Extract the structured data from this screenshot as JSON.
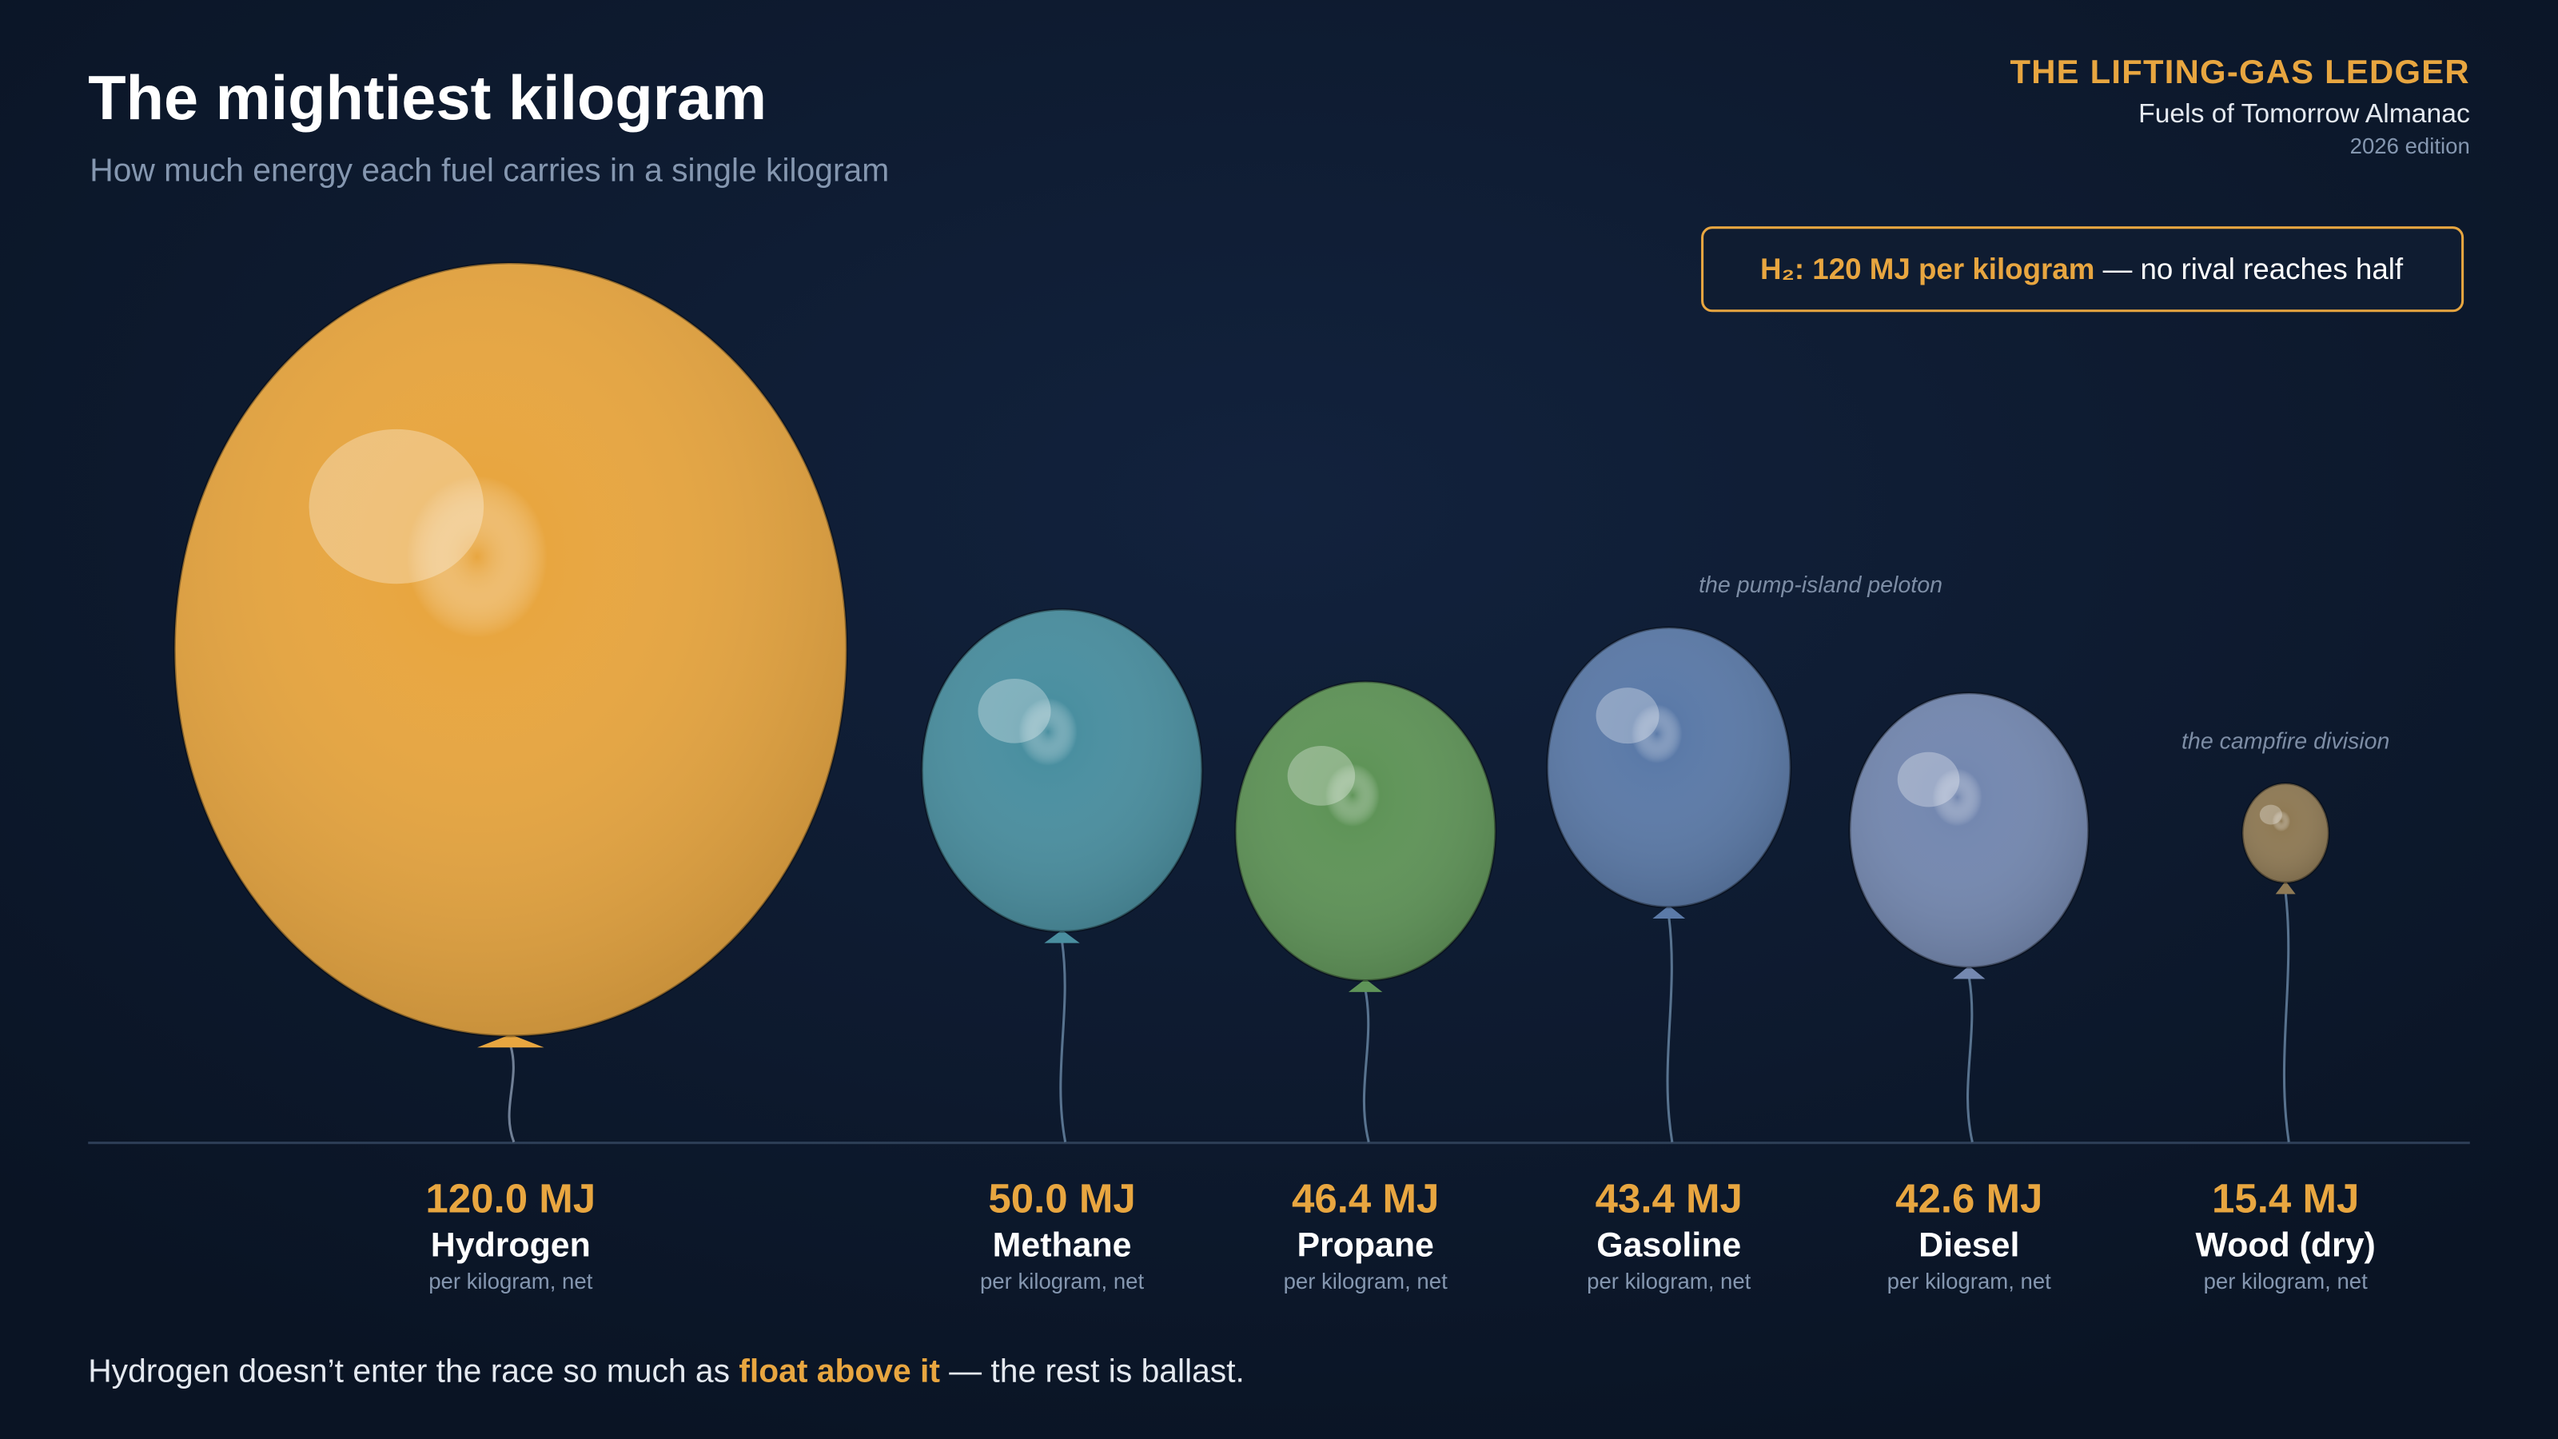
{
  "chart_data": {
    "type": "balloon",
    "title": "The mightiest kilogram",
    "subtitle": "How much energy each fuel carries in a single kilogram",
    "brand": {
      "name": "THE LIFTING-GAS LEDGER",
      "publication": "Fuels of Tomorrow Almanac",
      "edition": "2026 edition"
    },
    "callout": {
      "highlight": "H₂: 120 MJ per kilogram",
      "text": " — no rival reaches half"
    },
    "categories": [
      "Hydrogen",
      "Methane",
      "Propane",
      "Gasoline",
      "Diesel",
      "Wood (dry)"
    ],
    "values": [
      120.0,
      50.0,
      46.4,
      43.4,
      42.6,
      15.4
    ],
    "value_labels": [
      "120.0 MJ",
      "50.0 MJ",
      "46.4 MJ",
      "43.4 MJ",
      "42.6 MJ",
      "15.4 MJ"
    ],
    "colors": [
      "#e8a640",
      "#4a8fa0",
      "#5f9458",
      "#5b7aa8",
      "#7488b0",
      "#8f7a55"
    ],
    "unit_note": "per kilogram, net",
    "annotations": [
      "the pump-island peloton",
      "the campfire division"
    ],
    "footer": {
      "before": "Hydrogen doesn’t enter the race so much as ",
      "highlight": "float above it",
      "after": " — the rest is ballast."
    }
  }
}
